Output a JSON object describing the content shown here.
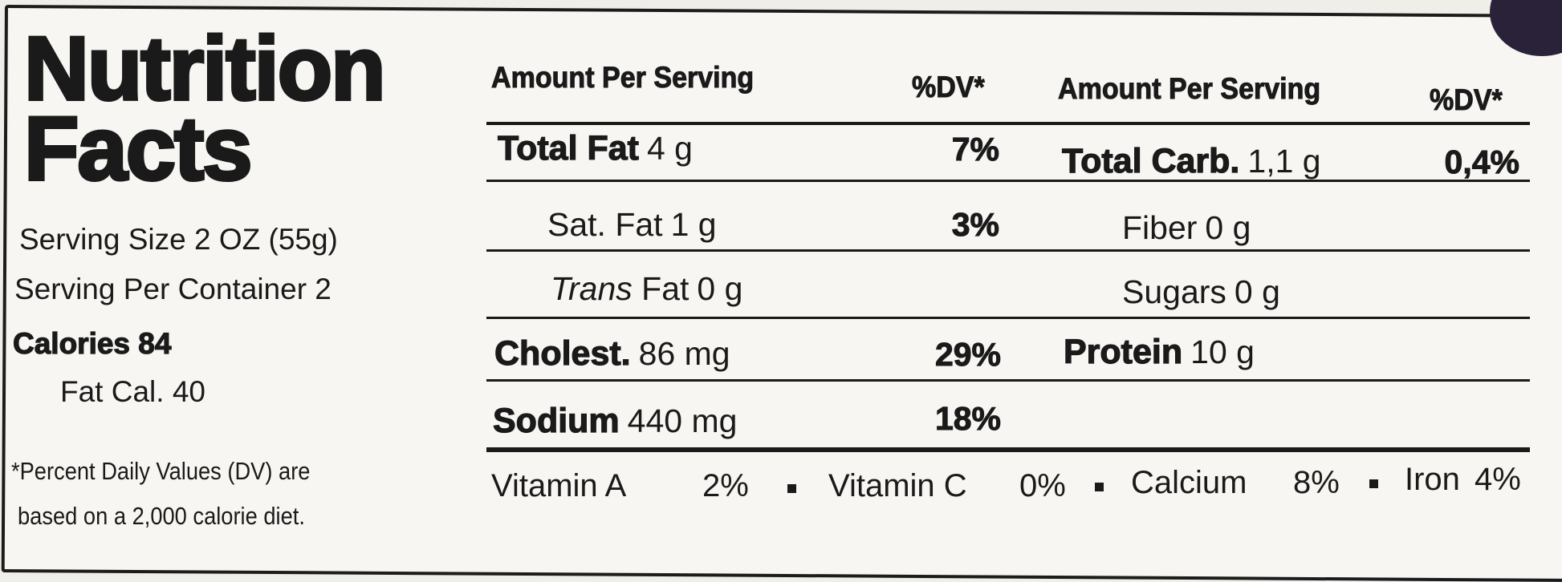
{
  "title": {
    "line1": "Nutrition",
    "line2": "Facts"
  },
  "serving": {
    "size": "Serving Size 2 OZ (55g)",
    "per_container": "Serving Per Container 2",
    "calories": "Calories 84",
    "fat_calories": "Fat Cal. 40"
  },
  "footnote": {
    "line1": "*Percent Daily Values (DV) are",
    "line2": "based on a 2,000 calorie diet."
  },
  "columns": [
    {
      "header": "Amount Per Serving",
      "dv_header": "%DV*",
      "rows": [
        {
          "name": "Total Fat",
          "amount": "4 g",
          "dv": "7%"
        },
        {
          "name": "Sat. Fat",
          "amount": "1 g",
          "dv": "3%"
        },
        {
          "name_italic": "Trans",
          "name": "Fat",
          "amount": "0 g"
        },
        {
          "name": "Cholest.",
          "amount": "86 mg",
          "dv": "29%"
        },
        {
          "name": "Sodium",
          "amount": "440 mg",
          "dv": "18%"
        }
      ]
    },
    {
      "header": "Amount Per Serving",
      "dv_header": "%DV*",
      "rows": [
        {
          "name": "Total Carb.",
          "amount": "1,1 g",
          "dv": "0,4%"
        },
        {
          "name": "Fiber",
          "amount": "0 g"
        },
        {
          "name": "Sugars",
          "amount": "0 g"
        },
        {
          "name": "Protein",
          "amount": "10 g"
        }
      ]
    }
  ],
  "vitamins": [
    {
      "name": "Vitamin A",
      "dv": "2%"
    },
    {
      "name": "Vitamin C",
      "dv": "0%"
    },
    {
      "name": "Calcium",
      "dv": "8%"
    },
    {
      "name": "Iron",
      "dv": "4%"
    }
  ]
}
